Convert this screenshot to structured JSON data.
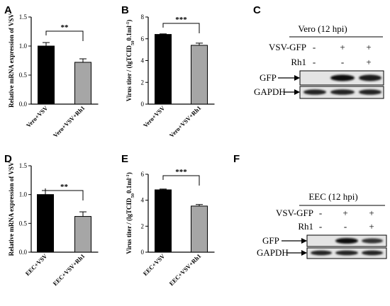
{
  "panels": {
    "A": "A",
    "B": "B",
    "C": "C",
    "D": "D",
    "E": "E",
    "F": "F"
  },
  "chart_data": [
    {
      "id": "A",
      "type": "bar",
      "categories": [
        "Vero+VSV",
        "Vero+VSV+Rh1"
      ],
      "values": [
        1.0,
        0.72
      ],
      "errors": [
        0.06,
        0.06
      ],
      "colors": [
        "#000000",
        "#a6a6a6"
      ],
      "ylabel": "Relative mRNA expression of VSV",
      "ylim": [
        0,
        1.5
      ],
      "yticks": [
        "0.0",
        "0.5",
        "1.0",
        "1.5"
      ],
      "significance": "**"
    },
    {
      "id": "B",
      "type": "bar",
      "categories": [
        "Vero+VSV",
        "Vero+VSV+Rh1"
      ],
      "values": [
        6.4,
        5.4
      ],
      "errors": [
        0.05,
        0.2
      ],
      "colors": [
        "#000000",
        "#a6a6a6"
      ],
      "ylabel_main": "Virus titer / (lgTCID",
      "ylabel_sub": "50",
      "ylabel_tail": "0.1ml",
      "ylabel_sup": "-1",
      "ylabel_close": ")",
      "ylim": [
        0,
        8
      ],
      "yticks": [
        "0",
        "2",
        "4",
        "6",
        "8"
      ],
      "significance": "***"
    },
    {
      "id": "D",
      "type": "bar",
      "categories": [
        "EEC+VSV",
        "EEC+VSV+Rh1"
      ],
      "values": [
        1.0,
        0.62
      ],
      "errors": [
        0.07,
        0.08
      ],
      "colors": [
        "#000000",
        "#a6a6a6"
      ],
      "ylabel": "Relative mRNA expression of VSV",
      "ylim": [
        0,
        1.5
      ],
      "yticks": [
        "0.0",
        "0.5",
        "1.0",
        "1.5"
      ],
      "significance": "**"
    },
    {
      "id": "E",
      "type": "bar",
      "categories": [
        "EEC+VSV",
        "EEC+VSV+Rh1"
      ],
      "values": [
        4.8,
        3.55
      ],
      "errors": [
        0.06,
        0.12
      ],
      "colors": [
        "#000000",
        "#a6a6a6"
      ],
      "ylabel_main": "Virus titer / (lgTCID",
      "ylabel_sub": "50",
      "ylabel_tail": "0.1ml",
      "ylabel_sup": "-1",
      "ylabel_close": ")",
      "ylim": [
        0,
        6
      ],
      "yticks": [
        "0",
        "2",
        "4",
        "6"
      ],
      "significance": "***"
    }
  ],
  "blots": {
    "C": {
      "header": "Vero (12 hpi)",
      "rows": [
        {
          "label": "VSV-GFP",
          "signs": [
            "-",
            "+",
            "+"
          ]
        },
        {
          "label": "Rh1",
          "signs": [
            "-",
            "-",
            "+"
          ]
        }
      ],
      "bands": [
        "GFP",
        "GAPDH"
      ]
    },
    "F": {
      "header": "EEC (12 hpi)",
      "rows": [
        {
          "label": "VSV-GFP",
          "signs": [
            "-",
            "+",
            "+"
          ]
        },
        {
          "label": "Rh1",
          "signs": [
            "-",
            "-",
            "+"
          ]
        }
      ],
      "bands": [
        "GFP",
        "GAPDH"
      ]
    }
  }
}
